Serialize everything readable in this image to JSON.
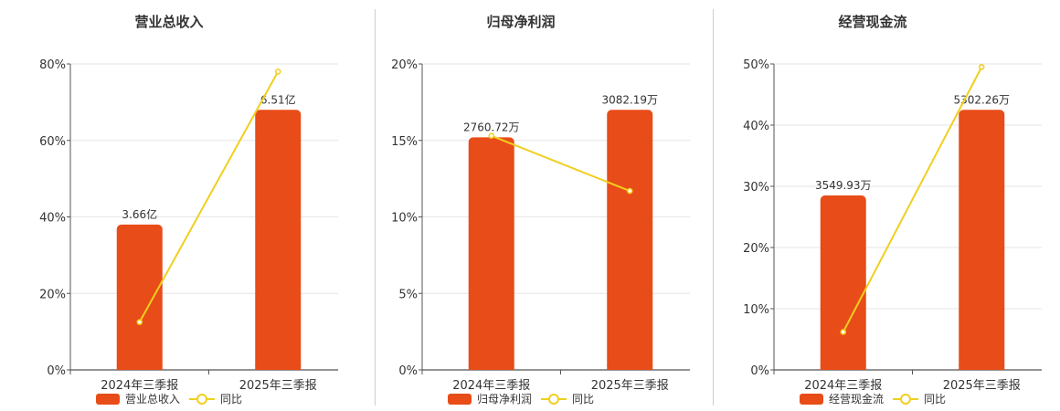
{
  "colors": {
    "bar": "#e84c18",
    "line": "#f0cf1f",
    "grid": "#e6e6e6",
    "axis": "#555555"
  },
  "chart_data": [
    {
      "type": "bar",
      "title": "营业总收入",
      "categories": [
        "2024年三季报",
        "2025年三季报"
      ],
      "series": [
        {
          "name": "营业总收入",
          "type": "bar",
          "values": [
            38,
            68
          ],
          "labels": [
            "3.66亿",
            "6.51亿"
          ]
        },
        {
          "name": "同比",
          "type": "line",
          "values": [
            12.5,
            78
          ]
        }
      ],
      "yticks": [
        "0%",
        "20%",
        "40%",
        "60%",
        "80%"
      ],
      "ylim": [
        0,
        80
      ],
      "grid": true,
      "legend": "bottom"
    },
    {
      "type": "bar",
      "title": "归母净利润",
      "categories": [
        "2024年三季报",
        "2025年三季报"
      ],
      "series": [
        {
          "name": "归母净利润",
          "type": "bar",
          "values": [
            15.2,
            17
          ],
          "labels": [
            "2760.72万",
            "3082.19万"
          ]
        },
        {
          "name": "同比",
          "type": "line",
          "values": [
            15.3,
            11.7
          ]
        }
      ],
      "yticks": [
        "0%",
        "5%",
        "10%",
        "15%",
        "20%"
      ],
      "ylim": [
        0,
        20
      ],
      "grid": true,
      "legend": "bottom"
    },
    {
      "type": "bar",
      "title": "经营现金流",
      "categories": [
        "2024年三季报",
        "2025年三季报"
      ],
      "series": [
        {
          "name": "经营现金流",
          "type": "bar",
          "values": [
            28.5,
            42.5
          ],
          "labels": [
            "3549.93万",
            "5302.26万"
          ]
        },
        {
          "name": "同比",
          "type": "line",
          "values": [
            6.2,
            49.5
          ]
        }
      ],
      "yticks": [
        "0%",
        "10%",
        "20%",
        "30%",
        "40%",
        "50%"
      ],
      "ylim": [
        0,
        50
      ],
      "grid": true,
      "legend": "bottom"
    }
  ]
}
